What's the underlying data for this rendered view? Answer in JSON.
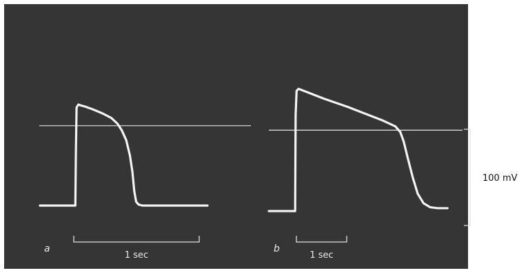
{
  "chart_data": {
    "type": "line",
    "title": "",
    "colors": {
      "background": "#353535",
      "trace": "#f4f4f4",
      "reference": "#e6e6e6",
      "scale_bar": "#e0e0e0",
      "outer_text": "#111111"
    },
    "voltage_scale": {
      "label": "100 mV",
      "value": 100,
      "unit": "mV"
    },
    "panels": [
      {
        "id": "a",
        "label": "a",
        "time_scale": {
          "label": "1 sec",
          "value": 1,
          "unit": "s"
        },
        "baseline_mV": 0,
        "reference_level_mV": 83,
        "series": [
          {
            "x": [
              0,
              0.57,
              0.58,
              0.59,
              0.62,
              0.66,
              0.72,
              0.85,
              1.0,
              1.15,
              1.25,
              1.32,
              1.39,
              1.45,
              1.49,
              1.52,
              1.55,
              1.59,
              1.65,
              2.7
            ],
            "y": [
              0,
              0,
              60,
              102,
              105,
              104,
              103,
              100,
              96,
              91,
              85,
              78,
              68,
              52,
              35,
              15,
              4,
              1,
              0,
              0
            ]
          }
        ]
      },
      {
        "id": "b",
        "label": "b",
        "time_scale": {
          "label": "1 sec",
          "value": 1,
          "unit": "s"
        },
        "baseline_mV": 0,
        "reference_level_mV": 84,
        "series": [
          {
            "x": [
              0,
              0.53,
              0.54,
              0.56,
              0.6,
              0.75,
              1.1,
              1.6,
              2.0,
              2.3,
              2.55,
              2.65,
              2.72,
              2.8,
              2.9,
              3.0,
              3.12,
              3.25,
              3.4,
              3.6
            ],
            "y": [
              0,
              0,
              100,
              125,
              127,
              124,
              117,
              108,
              100,
              94,
              88,
              82,
              72,
              55,
              35,
              18,
              8,
              4,
              3,
              3
            ]
          }
        ]
      }
    ]
  }
}
